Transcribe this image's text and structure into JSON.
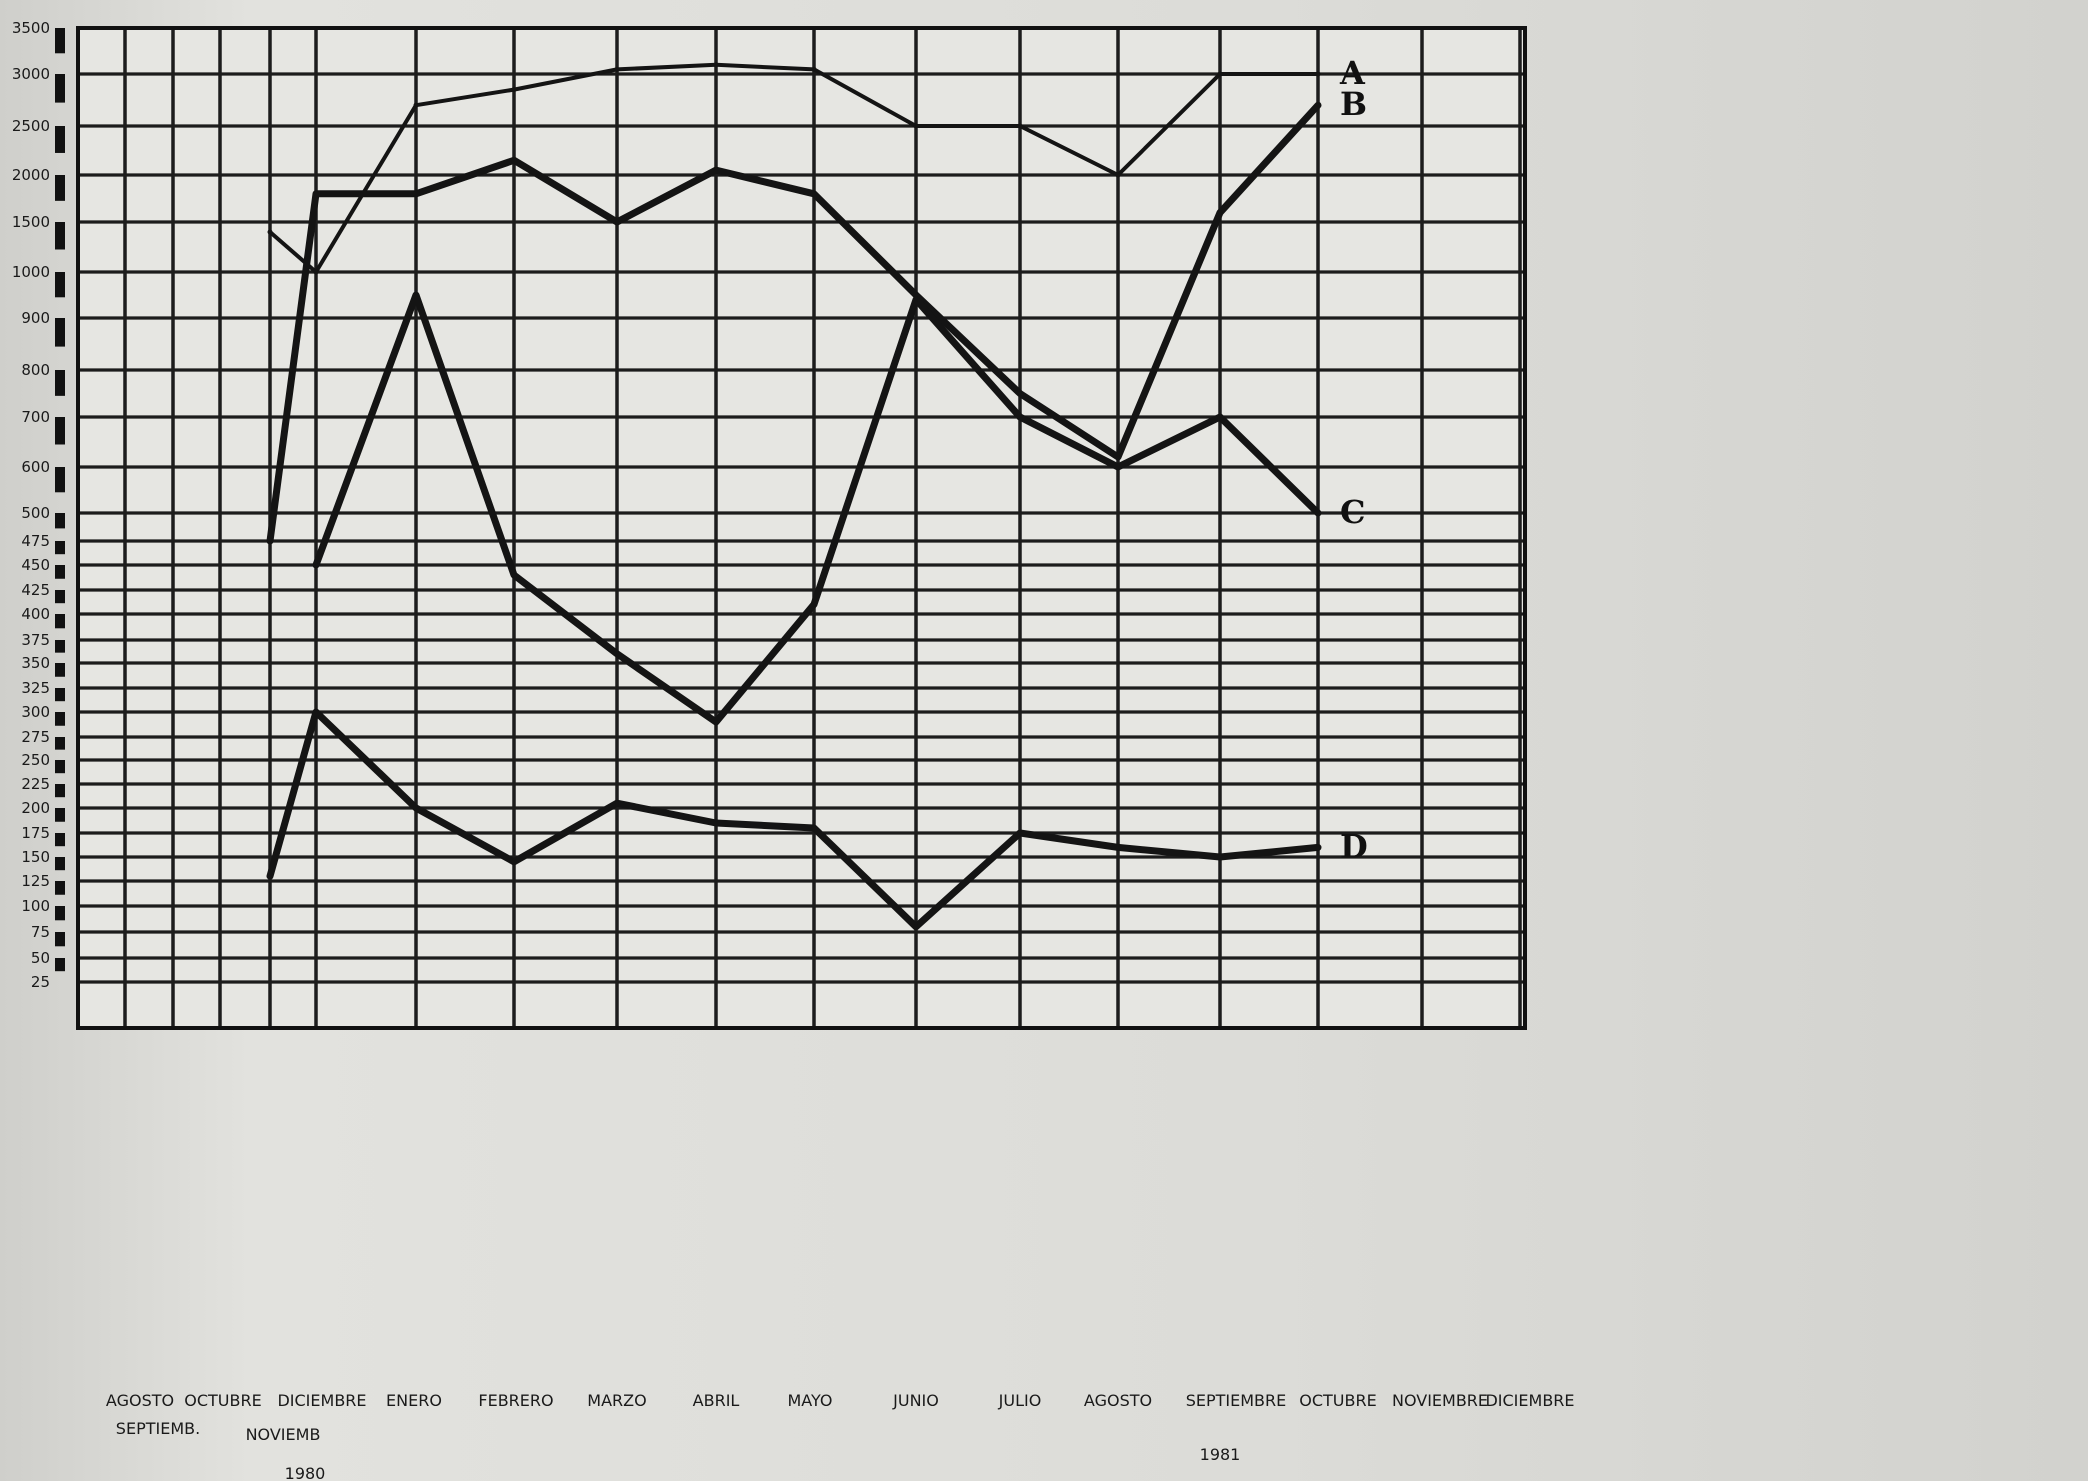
{
  "chart_data": {
    "type": "line",
    "title": "",
    "xlabel": "",
    "ylabel": "",
    "y_scale": "broken (non-uniform tick spacing)",
    "grid": true,
    "legend": "series letters at right end of lines",
    "y_ticks": [
      "3500",
      "3000",
      "2500",
      "2000",
      "1500",
      "1000",
      "900",
      "800",
      "700",
      "600",
      "500",
      "475",
      "450",
      "425",
      "400",
      "375",
      "350",
      "325",
      "300",
      "275",
      "250",
      "225",
      "200",
      "175",
      "150",
      "125",
      "100",
      "75",
      "50",
      "25"
    ],
    "x_tick_labels": [
      {
        "text": "AGOSTO"
      },
      {
        "text": "SEPTIEMB."
      },
      {
        "text": "OCTUBRE"
      },
      {
        "text": "NOVIEMB"
      },
      {
        "text": "DICIEMBRE"
      },
      {
        "text": "ENERO"
      },
      {
        "text": "FEBRERO"
      },
      {
        "text": "MARZO"
      },
      {
        "text": "ABRIL"
      },
      {
        "text": "MAYO"
      },
      {
        "text": "JUNIO"
      },
      {
        "text": "JULIO"
      },
      {
        "text": "AGOSTO"
      },
      {
        "text": "SEPTIEMBRE"
      },
      {
        "text": "OCTUBRE"
      },
      {
        "text": "NOVIEMBRE"
      },
      {
        "text": "DICIEMBRE"
      }
    ],
    "year_labels": [
      {
        "text": "1980"
      },
      {
        "text": "1981"
      }
    ],
    "categories": [
      "AGOSTO 1980",
      "SEPTIEMB. 1980",
      "OCTUBRE 1980",
      "NOVIEMB 1980",
      "DICIEMBRE 1980",
      "ENERO 1981",
      "FEBRERO 1981",
      "MARZO 1981",
      "ABRIL 1981",
      "MAYO 1981",
      "JUNIO 1981",
      "JULIO 1981",
      "AGOSTO 1981",
      "SEPTIEMBRE 1981",
      "OCTUBRE 1981",
      "NOVIEMBRE 1981",
      "DICIEMBRE 1981"
    ],
    "series": [
      {
        "name": "A",
        "x": [
          "NOVIEMB 1980",
          "DICIEMBRE 1980",
          "ENERO 1981",
          "FEBRERO 1981",
          "MARZO 1981",
          "ABRIL 1981",
          "MAYO 1981",
          "JUNIO 1981",
          "JULIO 1981",
          "AGOSTO 1981",
          "SEPTIEMBRE 1981",
          "OCTUBRE 1981"
        ],
        "values": [
          1400,
          1000,
          2700,
          2850,
          3050,
          3100,
          3050,
          2500,
          2500,
          2000,
          3000,
          3000
        ]
      },
      {
        "name": "B",
        "x": [
          "NOVIEMB 1980",
          "DICIEMBRE 1980",
          "ENERO 1981",
          "FEBRERO 1981",
          "MARZO 1981",
          "ABRIL 1981",
          "MAYO 1981",
          "JUNIO 1981",
          "JULIO 1981",
          "AGOSTO 1981",
          "SEPTIEMBRE 1981",
          "OCTUBRE 1981"
        ],
        "values": [
          475,
          1800,
          1800,
          2150,
          1500,
          2050,
          1800,
          950,
          750,
          620,
          1600,
          2700
        ]
      },
      {
        "name": "C",
        "x": [
          "DICIEMBRE 1980",
          "ENERO 1981",
          "FEBRERO 1981",
          "MARZO 1981",
          "ABRIL 1981",
          "MAYO 1981",
          "JUNIO 1981",
          "JULIO 1981",
          "AGOSTO 1981",
          "SEPTIEMBRE 1981",
          "OCTUBRE 1981"
        ],
        "values": [
          450,
          950,
          440,
          360,
          290,
          410,
          940,
          700,
          600,
          700,
          500
        ]
      },
      {
        "name": "D",
        "x": [
          "NOVIEMB 1980",
          "DICIEMBRE 1980",
          "ENERO 1981",
          "FEBRERO 1981",
          "MARZO 1981",
          "ABRIL 1981",
          "MAYO 1981",
          "JUNIO 1981",
          "JULIO 1981",
          "AGOSTO 1981",
          "SEPTIEMBRE 1981",
          "OCTUBRE 1981"
        ],
        "values": [
          130,
          300,
          200,
          145,
          205,
          185,
          180,
          80,
          175,
          160,
          150,
          160
        ]
      }
    ]
  }
}
